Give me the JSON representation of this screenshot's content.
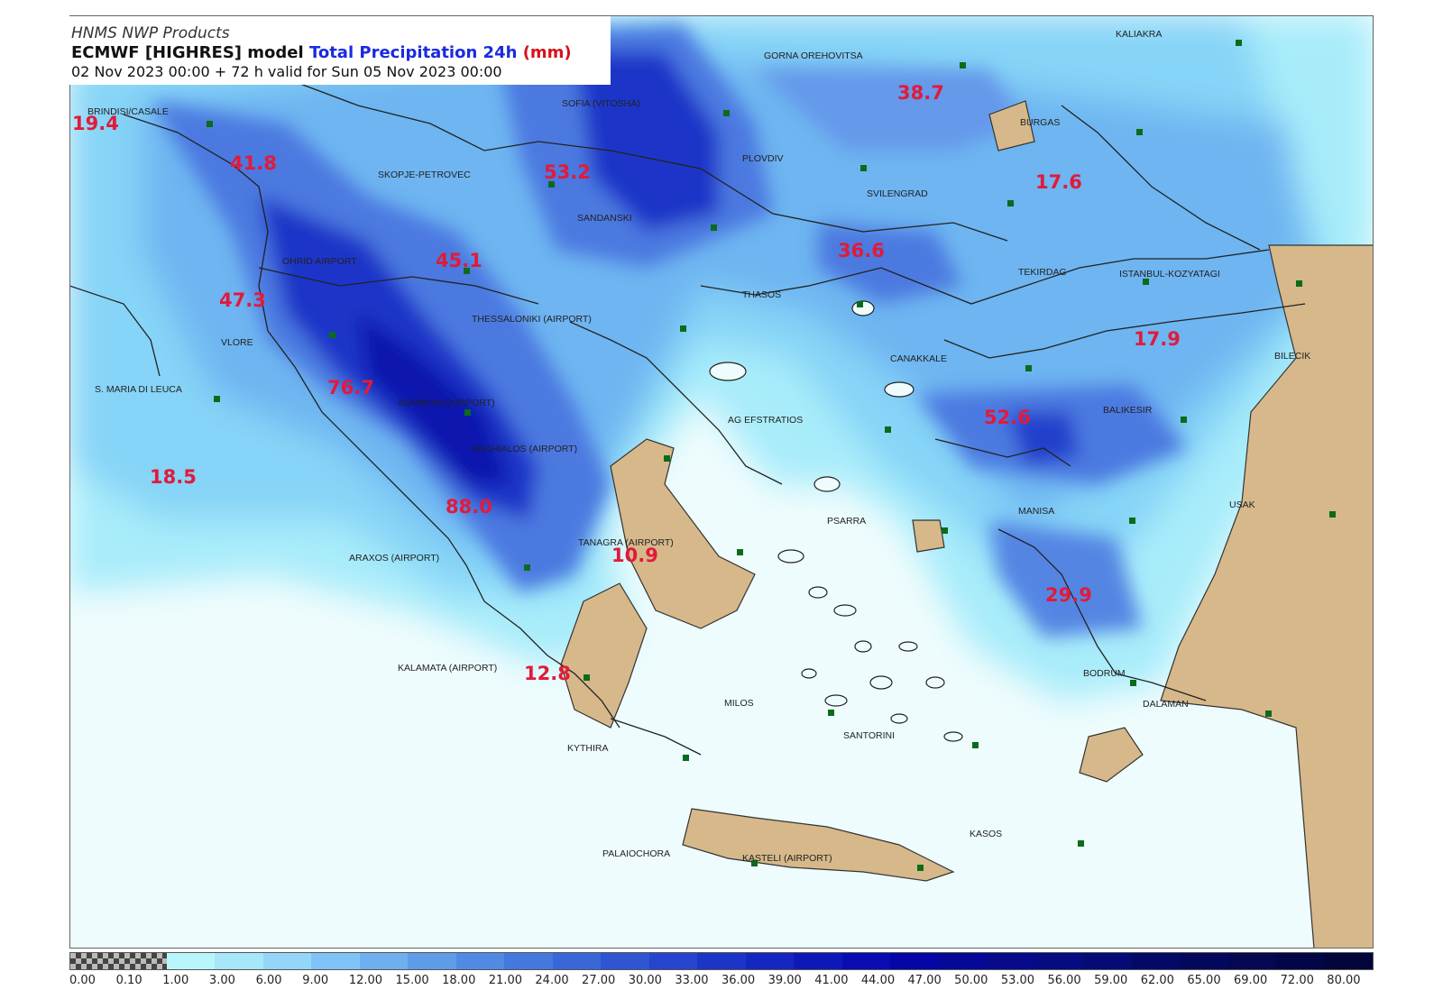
{
  "header": {
    "org": "HNMS NWP Products",
    "model": "ECMWF [HIGHRES] model",
    "parameter": "Total Precipitation 24h",
    "unit": "(mm)",
    "run_line": "02 Nov 2023 00:00 + 72 h valid for Sun 05 Nov 2023 00:00"
  },
  "precip_labels": [
    "19.4",
    "41.8",
    "53.2",
    "38.7",
    "17.6",
    "36.6",
    "45.1",
    "47.3",
    "76.7",
    "17.9",
    "52.6",
    "18.5",
    "88.0",
    "10.9",
    "29.9",
    "12.8"
  ],
  "stations": [
    "GORNA OREHOVITSA",
    "BURGAS",
    "PLOVDIV",
    "SOFIA (VITOSHA)",
    "SVILENGRAD",
    "SKOPJE-PETROVEC",
    "SANDANSKI",
    "OHRID AIRPORT",
    "TEKIRDAG",
    "ISTANBUL-KOZYATAGI",
    "THASOS",
    "THESSALONIKI (AIRPORT)",
    "VLORE",
    "S. MARIA DI LEUCA",
    "CANAKKALE",
    "BILECIK",
    "IOANNINA (AIRPORT)",
    "AG EFSTRATIOS",
    "BALIKESIR",
    "ANCHIALOS (AIRPORT)",
    "PSARRA",
    "MANISA",
    "USAK",
    "TANAGRA (AIRPORT)",
    "ARAXOS (AIRPORT)",
    "KALAMATA (AIRPORT)",
    "BODRUM",
    "MILOS",
    "DALAMAN",
    "SANTORINI",
    "KYTHIRA",
    "KASOS",
    "PALAIOCHORA",
    "KASTELI (AIRPORT)",
    "BRINDISI/CASALE",
    "KALIAKRA"
  ],
  "colorbar": {
    "colors": [
      "checker",
      "#b8f6fb",
      "#a6e7fa",
      "#93d6f8",
      "#80c3f6",
      "#6fafef",
      "#5f9ce8",
      "#518ae2",
      "#4578dc",
      "#3a67d7",
      "#2f55d2",
      "#2645cc",
      "#1d35c6",
      "#1526c0",
      "#0e18b9",
      "#080cb2",
      "#0606a6",
      "#060898",
      "#060a8b",
      "#050b80",
      "#050a74",
      "#040968",
      "#04085d",
      "#040752",
      "#030646",
      "#02053a"
    ],
    "labels": [
      "0.00",
      "0.10",
      "1.00",
      "3.00",
      "6.00",
      "9.00",
      "12.00",
      "15.00",
      "18.00",
      "21.00",
      "24.00",
      "27.00",
      "30.00",
      "33.00",
      "36.00",
      "39.00",
      "41.00",
      "44.00",
      "47.00",
      "50.00",
      "53.00",
      "56.00",
      "59.00",
      "62.00",
      "65.00",
      "69.00",
      "72.00",
      "80.00"
    ]
  }
}
